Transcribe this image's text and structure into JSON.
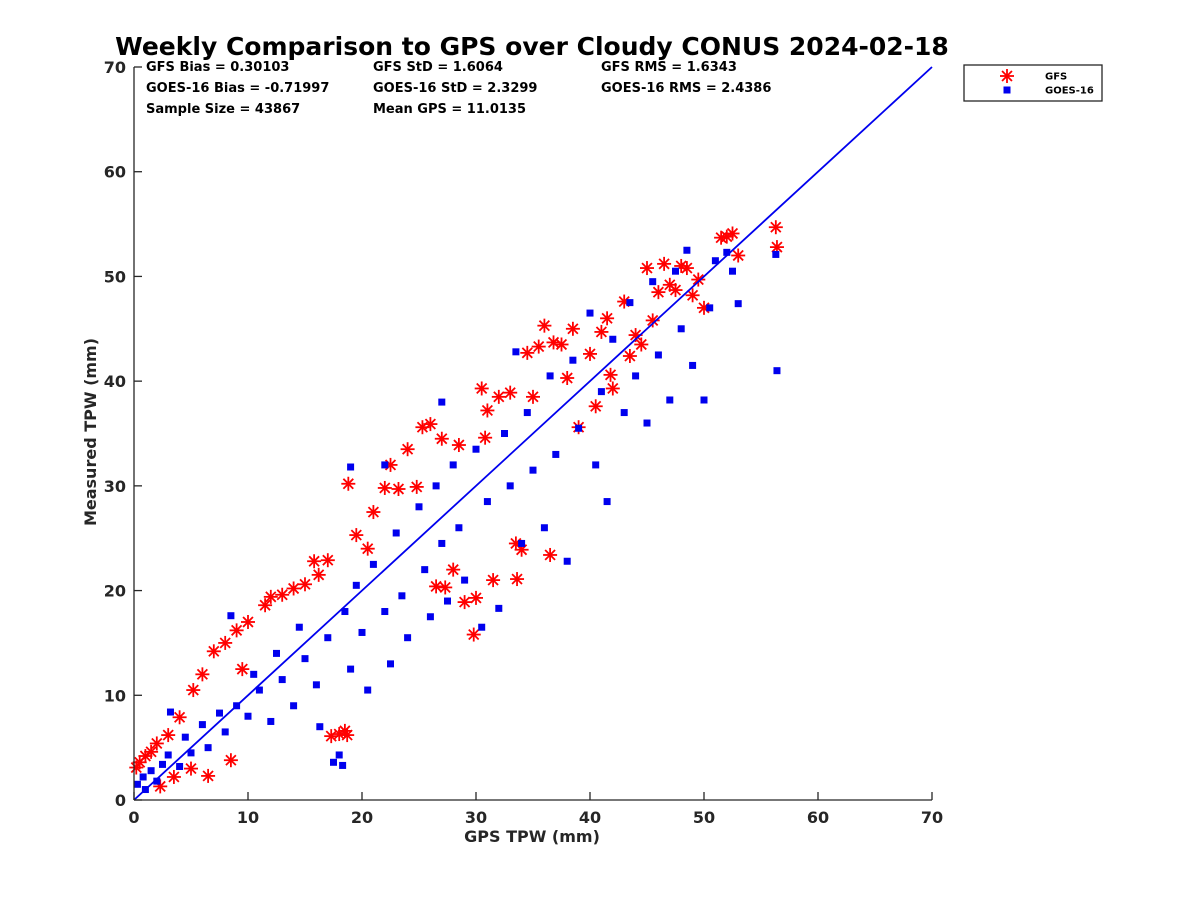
{
  "chart_data": {
    "type": "scatter",
    "title": "Weekly Comparison to GPS over Cloudy CONUS 2024-02-18",
    "xlabel": "GPS TPW (mm)",
    "ylabel": "Measured TPW (mm)",
    "xlim": [
      0,
      70
    ],
    "ylim": [
      0,
      70
    ],
    "xticks": [
      "0",
      "10",
      "20",
      "30",
      "40",
      "50",
      "60",
      "70"
    ],
    "yticks": [
      "0",
      "10",
      "20",
      "30",
      "40",
      "50",
      "60",
      "70"
    ],
    "grid": false,
    "legend_position": "outside-top-right",
    "stats": [
      "GFS Bias = 0.30103",
      "GFS StD = 1.6064",
      "GFS RMS = 1.6343",
      "GOES-16 Bias = -0.71997",
      "GOES-16 StD = 2.3299",
      "GOES-16 RMS = 2.4386",
      "Sample Size = 43867",
      "Mean GPS = 11.0135"
    ],
    "reference_line": {
      "x": [
        0,
        70
      ],
      "y": [
        0,
        70
      ],
      "color": "#0000ee"
    },
    "series": [
      {
        "name": "GFS",
        "marker": "asterisk",
        "color": "#ff0000",
        "points": [
          [
            0.2,
            3.1
          ],
          [
            0.5,
            3.6
          ],
          [
            1.0,
            4.2
          ],
          [
            1.5,
            4.6
          ],
          [
            2.0,
            5.4
          ],
          [
            2.3,
            1.3
          ],
          [
            3.0,
            6.2
          ],
          [
            3.5,
            2.2
          ],
          [
            4.0,
            7.9
          ],
          [
            5.0,
            3.0
          ],
          [
            5.2,
            10.5
          ],
          [
            6.5,
            2.3
          ],
          [
            7.0,
            14.2
          ],
          [
            8.0,
            15.0
          ],
          [
            8.5,
            3.8
          ],
          [
            9.0,
            16.2
          ],
          [
            10.0,
            17.0
          ],
          [
            11.5,
            18.6
          ],
          [
            12.0,
            19.4
          ],
          [
            13.0,
            19.6
          ],
          [
            14.0,
            20.2
          ],
          [
            15.0,
            20.6
          ],
          [
            15.8,
            22.8
          ],
          [
            16.2,
            21.5
          ],
          [
            17.0,
            22.9
          ],
          [
            17.3,
            6.1
          ],
          [
            18.0,
            6.3
          ],
          [
            18.5,
            6.6
          ],
          [
            18.7,
            6.2
          ],
          [
            18.8,
            30.2
          ],
          [
            19.5,
            25.3
          ],
          [
            21.0,
            27.5
          ],
          [
            22.0,
            29.8
          ],
          [
            22.5,
            32.0
          ],
          [
            23.2,
            29.7
          ],
          [
            24.0,
            33.5
          ],
          [
            25.3,
            35.6
          ],
          [
            26.0,
            35.9
          ],
          [
            26.5,
            20.4
          ],
          [
            27.0,
            34.5
          ],
          [
            27.3,
            20.3
          ],
          [
            28.0,
            22.0
          ],
          [
            29.0,
            18.9
          ],
          [
            29.8,
            15.8
          ],
          [
            30.0,
            19.3
          ],
          [
            30.5,
            39.3
          ],
          [
            31.0,
            37.2
          ],
          [
            31.5,
            21.0
          ],
          [
            32.0,
            38.5
          ],
          [
            33.0,
            38.9
          ],
          [
            33.5,
            24.5
          ],
          [
            33.6,
            21.1
          ],
          [
            34.0,
            23.9
          ],
          [
            34.5,
            42.7
          ],
          [
            35.0,
            38.5
          ],
          [
            35.5,
            43.3
          ],
          [
            36.0,
            45.3
          ],
          [
            36.5,
            23.4
          ],
          [
            37.5,
            43.5
          ],
          [
            38.0,
            40.3
          ],
          [
            38.5,
            45.0
          ],
          [
            39.0,
            35.6
          ],
          [
            40.0,
            42.6
          ],
          [
            40.5,
            37.6
          ],
          [
            41.0,
            44.7
          ],
          [
            41.5,
            46.0
          ],
          [
            42.0,
            39.3
          ],
          [
            43.0,
            47.6
          ],
          [
            43.5,
            42.4
          ],
          [
            44.0,
            44.4
          ],
          [
            44.5,
            43.5
          ],
          [
            45.0,
            50.8
          ],
          [
            45.5,
            45.8
          ],
          [
            46.0,
            48.5
          ],
          [
            46.5,
            51.2
          ],
          [
            47.0,
            49.2
          ],
          [
            47.5,
            48.7
          ],
          [
            48.0,
            51.0
          ],
          [
            48.5,
            50.8
          ],
          [
            49.0,
            48.2
          ],
          [
            49.5,
            49.7
          ],
          [
            50.0,
            47.0
          ],
          [
            51.5,
            53.7
          ],
          [
            52.0,
            53.8
          ],
          [
            52.5,
            54.1
          ],
          [
            53.0,
            52.0
          ],
          [
            56.3,
            54.7
          ],
          [
            56.4,
            52.8
          ],
          [
            20.5,
            24.0
          ],
          [
            24.8,
            29.9
          ],
          [
            28.5,
            33.9
          ],
          [
            30.8,
            34.6
          ],
          [
            36.8,
            43.7
          ],
          [
            41.8,
            40.6
          ],
          [
            6.0,
            12.0
          ],
          [
            9.5,
            12.5
          ]
        ]
      },
      {
        "name": "GOES-16",
        "marker": "square",
        "color": "#0000ee",
        "points": [
          [
            0.3,
            1.5
          ],
          [
            0.8,
            2.2
          ],
          [
            1.0,
            1.0
          ],
          [
            1.5,
            2.8
          ],
          [
            2.0,
            1.8
          ],
          [
            2.5,
            3.4
          ],
          [
            3.0,
            4.3
          ],
          [
            3.2,
            8.4
          ],
          [
            4.0,
            3.2
          ],
          [
            4.5,
            6.0
          ],
          [
            5.0,
            4.5
          ],
          [
            6.0,
            7.2
          ],
          [
            6.5,
            5.0
          ],
          [
            7.5,
            8.3
          ],
          [
            8.0,
            6.5
          ],
          [
            8.5,
            17.6
          ],
          [
            9.0,
            9.0
          ],
          [
            10.0,
            8.0
          ],
          [
            10.5,
            12.0
          ],
          [
            11.0,
            10.5
          ],
          [
            12.0,
            7.5
          ],
          [
            12.5,
            14.0
          ],
          [
            13.0,
            11.5
          ],
          [
            14.0,
            9.0
          ],
          [
            14.5,
            16.5
          ],
          [
            15.0,
            13.5
          ],
          [
            16.0,
            11.0
          ],
          [
            16.3,
            7.0
          ],
          [
            17.0,
            15.5
          ],
          [
            17.5,
            3.6
          ],
          [
            18.0,
            4.3
          ],
          [
            18.3,
            3.3
          ],
          [
            18.5,
            18.0
          ],
          [
            19.0,
            12.5
          ],
          [
            19.5,
            20.5
          ],
          [
            20.0,
            16.0
          ],
          [
            20.5,
            10.5
          ],
          [
            21.0,
            22.5
          ],
          [
            22.0,
            18.0
          ],
          [
            22.5,
            13.0
          ],
          [
            23.0,
            25.5
          ],
          [
            23.5,
            19.5
          ],
          [
            24.0,
            15.5
          ],
          [
            25.0,
            28.0
          ],
          [
            25.5,
            22.0
          ],
          [
            26.0,
            17.5
          ],
          [
            26.5,
            30.0
          ],
          [
            27.0,
            24.5
          ],
          [
            27.5,
            19.0
          ],
          [
            28.0,
            32.0
          ],
          [
            28.5,
            26.0
          ],
          [
            29.0,
            21.0
          ],
          [
            30.0,
            33.5
          ],
          [
            30.5,
            16.5
          ],
          [
            31.0,
            28.5
          ],
          [
            32.0,
            18.3
          ],
          [
            32.5,
            35.0
          ],
          [
            33.0,
            30.0
          ],
          [
            34.0,
            24.5
          ],
          [
            34.5,
            37.0
          ],
          [
            35.0,
            31.5
          ],
          [
            36.0,
            26.0
          ],
          [
            36.5,
            40.5
          ],
          [
            37.0,
            33.0
          ],
          [
            38.0,
            22.8
          ],
          [
            38.5,
            42.0
          ],
          [
            39.0,
            35.5
          ],
          [
            40.0,
            46.5
          ],
          [
            40.5,
            32.0
          ],
          [
            41.0,
            39.0
          ],
          [
            41.5,
            28.5
          ],
          [
            42.0,
            44.0
          ],
          [
            43.0,
            37.0
          ],
          [
            43.5,
            47.5
          ],
          [
            44.0,
            40.5
          ],
          [
            45.0,
            36.0
          ],
          [
            45.5,
            49.5
          ],
          [
            46.0,
            42.5
          ],
          [
            47.0,
            38.2
          ],
          [
            47.5,
            50.5
          ],
          [
            48.0,
            45.0
          ],
          [
            48.5,
            52.5
          ],
          [
            49.0,
            41.5
          ],
          [
            50.0,
            38.2
          ],
          [
            50.5,
            47.0
          ],
          [
            51.0,
            51.5
          ],
          [
            52.0,
            52.3
          ],
          [
            52.5,
            50.5
          ],
          [
            53.0,
            47.4
          ],
          [
            56.3,
            52.1
          ],
          [
            56.4,
            41.0
          ],
          [
            22.0,
            32.0
          ],
          [
            19.0,
            31.8
          ],
          [
            27.0,
            38.0
          ],
          [
            33.5,
            42.8
          ]
        ]
      }
    ]
  }
}
